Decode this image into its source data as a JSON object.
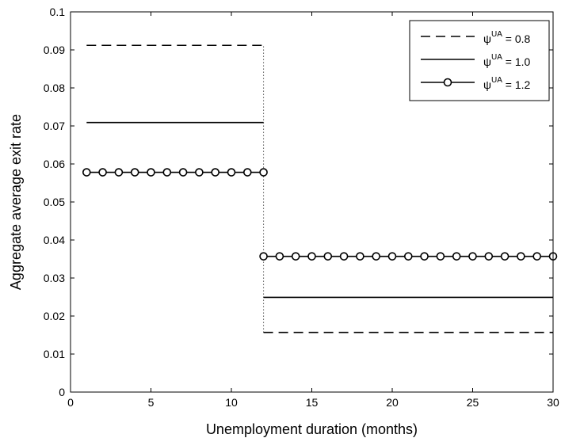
{
  "chart_data": {
    "type": "line",
    "title": "",
    "xlabel": "Unemployment duration (months)",
    "ylabel": "Aggregate average exit rate",
    "xlim": [
      0,
      30
    ],
    "ylim": [
      0,
      0.1
    ],
    "xticks": [
      "0",
      "5",
      "10",
      "15",
      "20",
      "25",
      "30"
    ],
    "yticks": [
      "0",
      "0.01",
      "0.02",
      "0.03",
      "0.04",
      "0.05",
      "0.06",
      "0.07",
      "0.08",
      "0.09",
      "0.1"
    ],
    "grid": false,
    "legend_position": "top-right",
    "series": [
      {
        "name": "ψUA = 0.8",
        "legend_base": "ψ",
        "legend_sup": "UA",
        "legend_value": " = 0.8",
        "style": "dashed",
        "color": "#000000",
        "segments": [
          {
            "x": [
              1,
              12
            ],
            "y": [
              0.0912,
              0.0912
            ]
          },
          {
            "x": [
              12,
              30
            ],
            "y": [
              0.0157,
              0.0157
            ]
          }
        ]
      },
      {
        "name": "ψUA = 1.0",
        "legend_base": "ψ",
        "legend_sup": "UA",
        "legend_value": " = 1.0",
        "style": "solid",
        "color": "#000000",
        "segments": [
          {
            "x": [
              1,
              12
            ],
            "y": [
              0.0709,
              0.0709
            ]
          },
          {
            "x": [
              12,
              30
            ],
            "y": [
              0.0249,
              0.0249
            ]
          }
        ]
      },
      {
        "name": "ψUA = 1.2",
        "legend_base": "ψ",
        "legend_sup": "UA",
        "legend_value": " = 1.2",
        "style": "solid-circles",
        "color": "#000000",
        "points": {
          "x": [
            1,
            2,
            3,
            4,
            5,
            6,
            7,
            8,
            9,
            10,
            11,
            12,
            12,
            13,
            14,
            15,
            16,
            17,
            18,
            19,
            20,
            21,
            22,
            23,
            24,
            25,
            26,
            27,
            28,
            29,
            30
          ],
          "y": [
            0.0578,
            0.0578,
            0.0578,
            0.0578,
            0.0578,
            0.0578,
            0.0578,
            0.0578,
            0.0578,
            0.0578,
            0.0578,
            0.0578,
            0.0357,
            0.0357,
            0.0357,
            0.0357,
            0.0357,
            0.0357,
            0.0357,
            0.0357,
            0.0357,
            0.0357,
            0.0357,
            0.0357,
            0.0357,
            0.0357,
            0.0357,
            0.0357,
            0.0357,
            0.0357,
            0.0357
          ]
        },
        "segments": [
          {
            "x": [
              1,
              12
            ],
            "y": [
              0.0578,
              0.0578
            ]
          },
          {
            "x": [
              12,
              30
            ],
            "y": [
              0.0357,
              0.0357
            ]
          }
        ]
      }
    ],
    "vertical_reference": {
      "x": 12,
      "y": [
        0.0157,
        0.0912
      ],
      "style": "dotted"
    }
  }
}
